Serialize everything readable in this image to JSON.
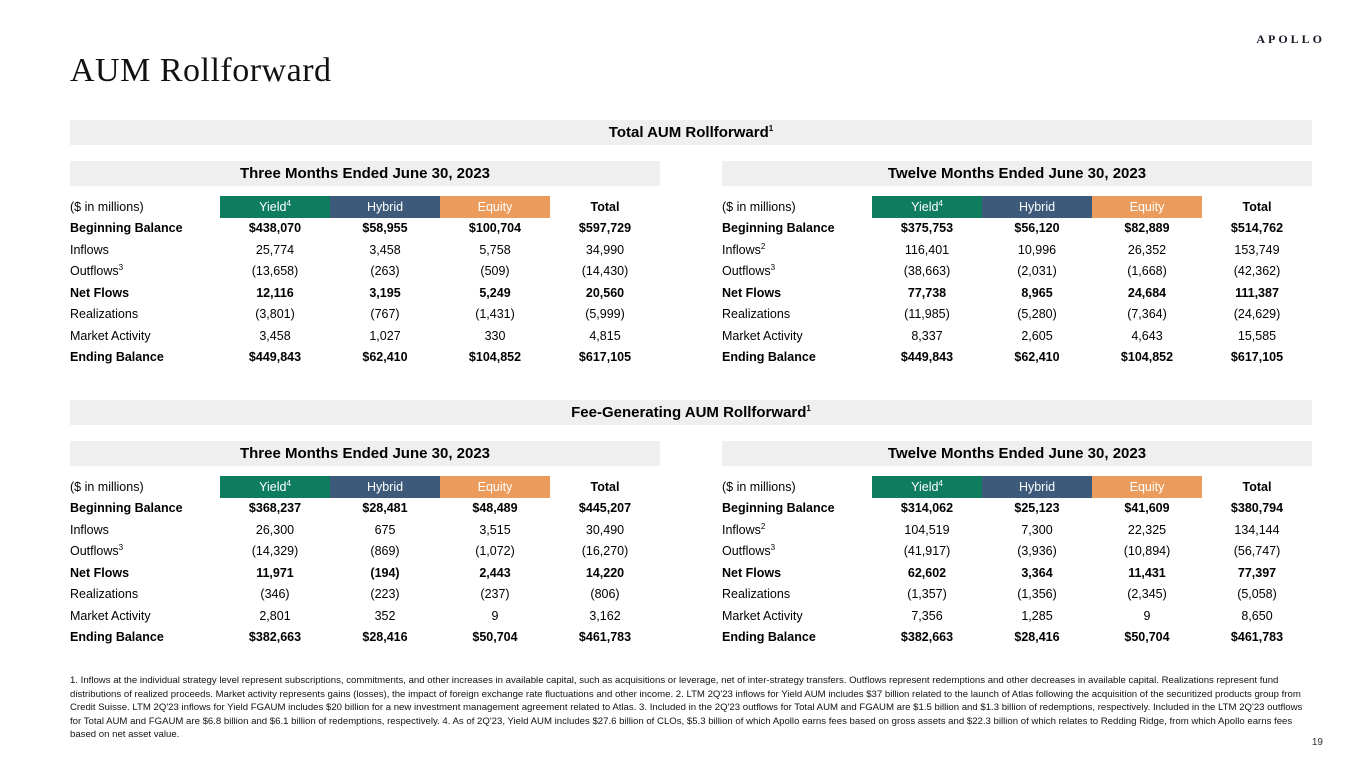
{
  "brand": {
    "logo": "APOLLO"
  },
  "page": {
    "title": "AUM Rollforward",
    "number": "19"
  },
  "colors": {
    "yield": "#0E7C5F",
    "hybrid": "#3E5A7A",
    "equity": "#EB9C5C",
    "bar_bg": "#EFEFEF"
  },
  "sections": [
    {
      "title": "Total AUM Rollforward",
      "title_sup": "1",
      "tables": [
        {
          "period": "Three Months Ended June 30, 2023",
          "unit_label": "($ in millions)",
          "columns": [
            {
              "label": "Yield",
              "sup": "4",
              "bg": "#0E7C5F",
              "fg": "#FFFFFF"
            },
            {
              "label": "Hybrid",
              "bg": "#3E5A7A",
              "fg": "#FFFFFF"
            },
            {
              "label": "Equity",
              "bg": "#EB9C5C",
              "fg": "#FFFFFF"
            },
            {
              "label": "Total"
            }
          ],
          "rows": [
            {
              "label": "Beginning Balance",
              "bold": true,
              "values": [
                "$438,070",
                "$58,955",
                "$100,704",
                "$597,729"
              ]
            },
            {
              "label": "Inflows",
              "values": [
                "25,774",
                "3,458",
                "5,758",
                "34,990"
              ]
            },
            {
              "label": "Outflows",
              "sup": "3",
              "values": [
                "(13,658)",
                "(263)",
                "(509)",
                "(14,430)"
              ]
            },
            {
              "label": "Net Flows",
              "bold": true,
              "values": [
                "12,116",
                "3,195",
                "5,249",
                "20,560"
              ]
            },
            {
              "label": "Realizations",
              "values": [
                "(3,801)",
                "(767)",
                "(1,431)",
                "(5,999)"
              ]
            },
            {
              "label": "Market Activity",
              "values": [
                "3,458",
                "1,027",
                "330",
                "4,815"
              ]
            },
            {
              "label": "Ending Balance",
              "bold": true,
              "values": [
                "$449,843",
                "$62,410",
                "$104,852",
                "$617,105"
              ]
            }
          ]
        },
        {
          "period": "Twelve Months Ended June 30, 2023",
          "unit_label": "($ in millions)",
          "columns": [
            {
              "label": "Yield",
              "sup": "4",
              "bg": "#0E7C5F",
              "fg": "#FFFFFF"
            },
            {
              "label": "Hybrid",
              "bg": "#3E5A7A",
              "fg": "#FFFFFF"
            },
            {
              "label": "Equity",
              "bg": "#EB9C5C",
              "fg": "#FFFFFF"
            },
            {
              "label": "Total"
            }
          ],
          "rows": [
            {
              "label": "Beginning Balance",
              "bold": true,
              "values": [
                "$375,753",
                "$56,120",
                "$82,889",
                "$514,762"
              ]
            },
            {
              "label": "Inflows",
              "sup": "2",
              "values": [
                "116,401",
                "10,996",
                "26,352",
                "153,749"
              ]
            },
            {
              "label": "Outflows",
              "sup": "3",
              "values": [
                "(38,663)",
                "(2,031)",
                "(1,668)",
                "(42,362)"
              ]
            },
            {
              "label": "Net Flows",
              "bold": true,
              "values": [
                "77,738",
                "8,965",
                "24,684",
                "111,387"
              ]
            },
            {
              "label": "Realizations",
              "values": [
                "(11,985)",
                "(5,280)",
                "(7,364)",
                "(24,629)"
              ]
            },
            {
              "label": "Market Activity",
              "values": [
                "8,337",
                "2,605",
                "4,643",
                "15,585"
              ]
            },
            {
              "label": "Ending Balance",
              "bold": true,
              "values": [
                "$449,843",
                "$62,410",
                "$104,852",
                "$617,105"
              ]
            }
          ]
        }
      ]
    },
    {
      "title": "Fee-Generating AUM Rollforward",
      "title_sup": "1",
      "tables": [
        {
          "period": "Three Months Ended June 30, 2023",
          "unit_label": "($ in millions)",
          "columns": [
            {
              "label": "Yield",
              "sup": "4",
              "bg": "#0E7C5F",
              "fg": "#FFFFFF"
            },
            {
              "label": "Hybrid",
              "bg": "#3E5A7A",
              "fg": "#FFFFFF"
            },
            {
              "label": "Equity",
              "bg": "#EB9C5C",
              "fg": "#FFFFFF"
            },
            {
              "label": "Total"
            }
          ],
          "rows": [
            {
              "label": "Beginning Balance",
              "bold": true,
              "values": [
                "$368,237",
                "$28,481",
                "$48,489",
                "$445,207"
              ]
            },
            {
              "label": "Inflows",
              "values": [
                "26,300",
                "675",
                "3,515",
                "30,490"
              ]
            },
            {
              "label": "Outflows",
              "sup": "3",
              "values": [
                "(14,329)",
                "(869)",
                "(1,072)",
                "(16,270)"
              ]
            },
            {
              "label": "Net Flows",
              "bold": true,
              "values": [
                "11,971",
                "(194)",
                "2,443",
                "14,220"
              ]
            },
            {
              "label": "Realizations",
              "values": [
                "(346)",
                "(223)",
                "(237)",
                "(806)"
              ]
            },
            {
              "label": "Market Activity",
              "values": [
                "2,801",
                "352",
                "9",
                "3,162"
              ]
            },
            {
              "label": "Ending Balance",
              "bold": true,
              "values": [
                "$382,663",
                "$28,416",
                "$50,704",
                "$461,783"
              ]
            }
          ]
        },
        {
          "period": "Twelve Months Ended June 30, 2023",
          "unit_label": "($ in millions)",
          "columns": [
            {
              "label": "Yield",
              "sup": "4",
              "bg": "#0E7C5F",
              "fg": "#FFFFFF"
            },
            {
              "label": "Hybrid",
              "bg": "#3E5A7A",
              "fg": "#FFFFFF"
            },
            {
              "label": "Equity",
              "bg": "#EB9C5C",
              "fg": "#FFFFFF"
            },
            {
              "label": "Total"
            }
          ],
          "rows": [
            {
              "label": "Beginning Balance",
              "bold": true,
              "values": [
                "$314,062",
                "$25,123",
                "$41,609",
                "$380,794"
              ]
            },
            {
              "label": "Inflows",
              "sup": "2",
              "values": [
                "104,519",
                "7,300",
                "22,325",
                "134,144"
              ]
            },
            {
              "label": "Outflows",
              "sup": "3",
              "values": [
                "(41,917)",
                "(3,936)",
                "(10,894)",
                "(56,747)"
              ]
            },
            {
              "label": "Net Flows",
              "bold": true,
              "values": [
                "62,602",
                "3,364",
                "11,431",
                "77,397"
              ]
            },
            {
              "label": "Realizations",
              "values": [
                "(1,357)",
                "(1,356)",
                "(2,345)",
                "(5,058)"
              ]
            },
            {
              "label": "Market Activity",
              "values": [
                "7,356",
                "1,285",
                "9",
                "8,650"
              ]
            },
            {
              "label": "Ending Balance",
              "bold": true,
              "values": [
                "$382,663",
                "$28,416",
                "$50,704",
                "$461,783"
              ]
            }
          ]
        }
      ]
    }
  ],
  "footnotes": "1. Inflows at the individual strategy level represent subscriptions, commitments, and other increases in available capital, such as acquisitions or leverage, net of inter-strategy transfers. Outflows represent redemptions and other decreases in available capital. Realizations represent fund distributions of realized proceeds. Market activity represents gains (losses), the impact of foreign exchange rate fluctuations and other income. 2. LTM 2Q'23 inflows for Yield AUM includes $37 billion related to the launch of Atlas following the acquisition of the securitized products group from Credit Suisse. LTM 2Q'23 inflows for Yield FGAUM includes $20 billion for a new investment management agreement related to Atlas. 3. Included in the 2Q'23 outflows for Total AUM and FGAUM are $1.5 billion and $1.3 billion of redemptions, respectively. Included in the LTM 2Q'23 outflows for Total AUM and FGAUM are $6.8 billion and $6.1 billion of redemptions, respectively. 4. As of 2Q'23, Yield AUM includes $27.6 billion of CLOs, $5.3 billion of which Apollo earns fees based on gross assets and $22.3 billion of which relates to Redding Ridge, from which Apollo earns fees based on net asset value."
}
